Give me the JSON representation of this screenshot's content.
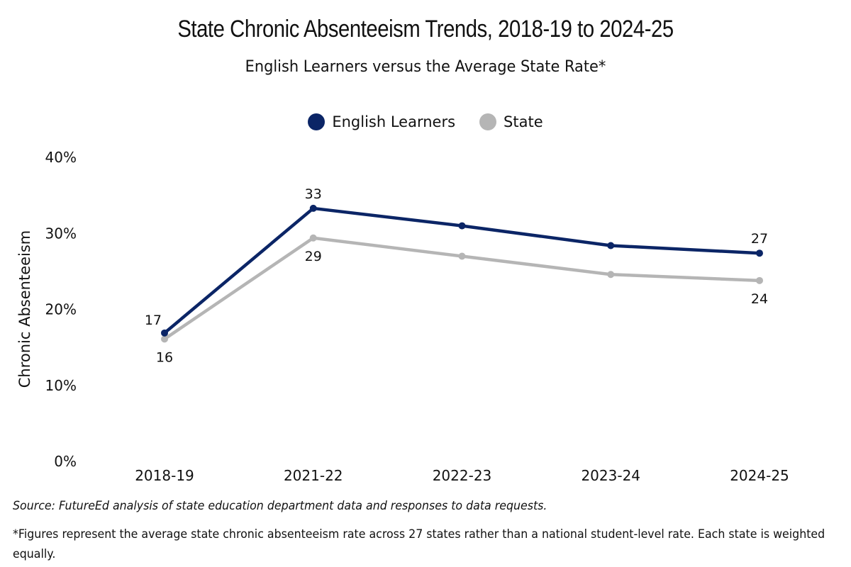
{
  "chart_data": {
    "type": "line",
    "title": "State Chronic Absenteeism Trends, 2018-19 to 2024-25",
    "subtitle": "English Learners versus the Average State Rate*",
    "xlabel": "",
    "ylabel": "Chronic Absenteeism",
    "categories": [
      "2018-19",
      "2021-22",
      "2022-23",
      "2023-24",
      "2024-25"
    ],
    "ylim": [
      0,
      40
    ],
    "yticks": [
      0,
      10,
      20,
      30,
      40
    ],
    "ytick_labels": [
      "0%",
      "10%",
      "20%",
      "30%",
      "40%"
    ],
    "grid": false,
    "legend_position": "top-center",
    "series": [
      {
        "name": "English Learners",
        "color": "#0b2566",
        "values": [
          16.8,
          33.2,
          30.9,
          28.3,
          27.3
        ],
        "data_labels": [
          {
            "index": 0,
            "text": "17",
            "position": "above-left"
          },
          {
            "index": 1,
            "text": "33",
            "position": "above"
          },
          {
            "index": 4,
            "text": "27",
            "position": "above"
          }
        ]
      },
      {
        "name": "State",
        "color": "#b5b5b5",
        "values": [
          16.0,
          29.3,
          26.9,
          24.5,
          23.7
        ],
        "data_labels": [
          {
            "index": 0,
            "text": "16",
            "position": "below"
          },
          {
            "index": 1,
            "text": "29",
            "position": "below"
          },
          {
            "index": 4,
            "text": "24",
            "position": "below"
          }
        ]
      }
    ]
  },
  "footer": {
    "source": "Source: FutureEd analysis of state education department data and responses to data requests.",
    "note": "*Figures represent the average state chronic absenteeism rate across 27 states rather than a national student-level rate. Each state is weighted equally."
  }
}
